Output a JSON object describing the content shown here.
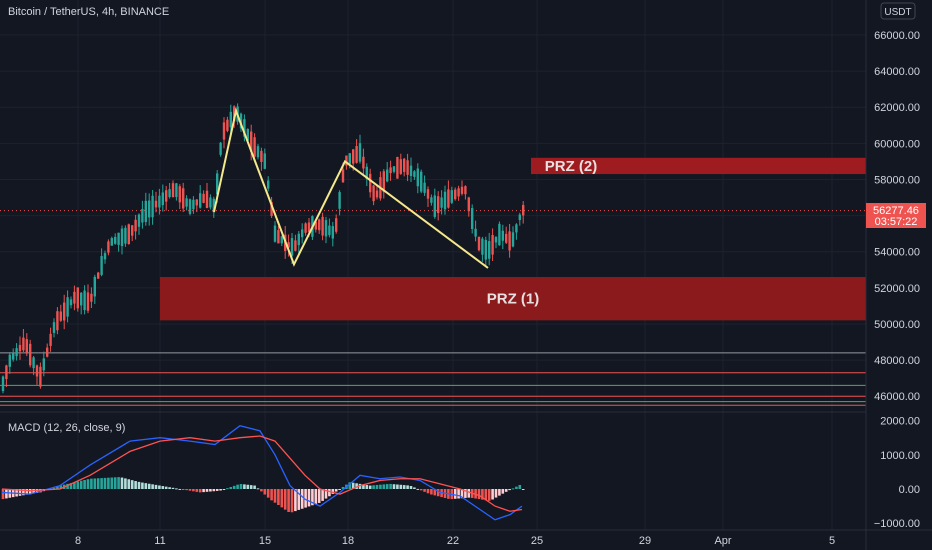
{
  "header": {
    "symbol_title": "Bitcoin / TetherUS, 4h, BINANCE",
    "currency_button": "USDT"
  },
  "indicator": {
    "label": "MACD (12, 26, close, 9)"
  },
  "price_label": {
    "price": "56277.46",
    "countdown": "03:57:22"
  },
  "zones": [
    {
      "label": "PRZ (1)",
      "from": 50200,
      "to": 52600,
      "color": "#8b1a1d"
    },
    {
      "label": "PRZ (2)",
      "from": 58300,
      "to": 59200,
      "color": "#9e1c1f"
    }
  ],
  "colors": {
    "up": "#26a69a",
    "down": "#ef5350",
    "pattern": "#f5e88a",
    "macd": "#2962ff",
    "signal": "#ff5252"
  },
  "chart_data": {
    "type": "candlestick",
    "price_axis": {
      "ticks": [
        "66000.00",
        "64000.00",
        "62000.00",
        "60000.00",
        "58000.00",
        "56000.00",
        "54000.00",
        "52000.00",
        "50000.00",
        "48000.00",
        "46000.00"
      ],
      "range": [
        45000,
        67500
      ]
    },
    "macd_axis": {
      "ticks": [
        "2000.00",
        "1000.00",
        "0.00",
        "−1000.00"
      ],
      "range": [
        -1200,
        2200
      ]
    },
    "time_axis": {
      "ticks": [
        "8",
        "11",
        "15",
        "18",
        "22",
        "25",
        "29",
        "Apr",
        "5"
      ]
    },
    "horizontal_levels": [
      {
        "price": 48400,
        "color": "#9598a1"
      },
      {
        "price": 47300,
        "color": "#ef5350"
      },
      {
        "price": 46600,
        "color": "#4caf50"
      },
      {
        "price": 46000,
        "color": "#ef5350"
      },
      {
        "price": 45700,
        "color": "#4caf50"
      },
      {
        "price": 45500,
        "color": "#ef5350"
      }
    ],
    "harmonic_pattern": [
      {
        "t": "Mar 12 16:00",
        "price": 56200
      },
      {
        "t": "Mar 13 20:00",
        "price": 61800
      },
      {
        "t": "Mar 15 20:00",
        "price": 53300
      },
      {
        "t": "Mar 17 16:00",
        "price": 59000
      },
      {
        "t": "Mar 22 20:00",
        "price": 53100
      }
    ],
    "last_price": 56277.46
  }
}
